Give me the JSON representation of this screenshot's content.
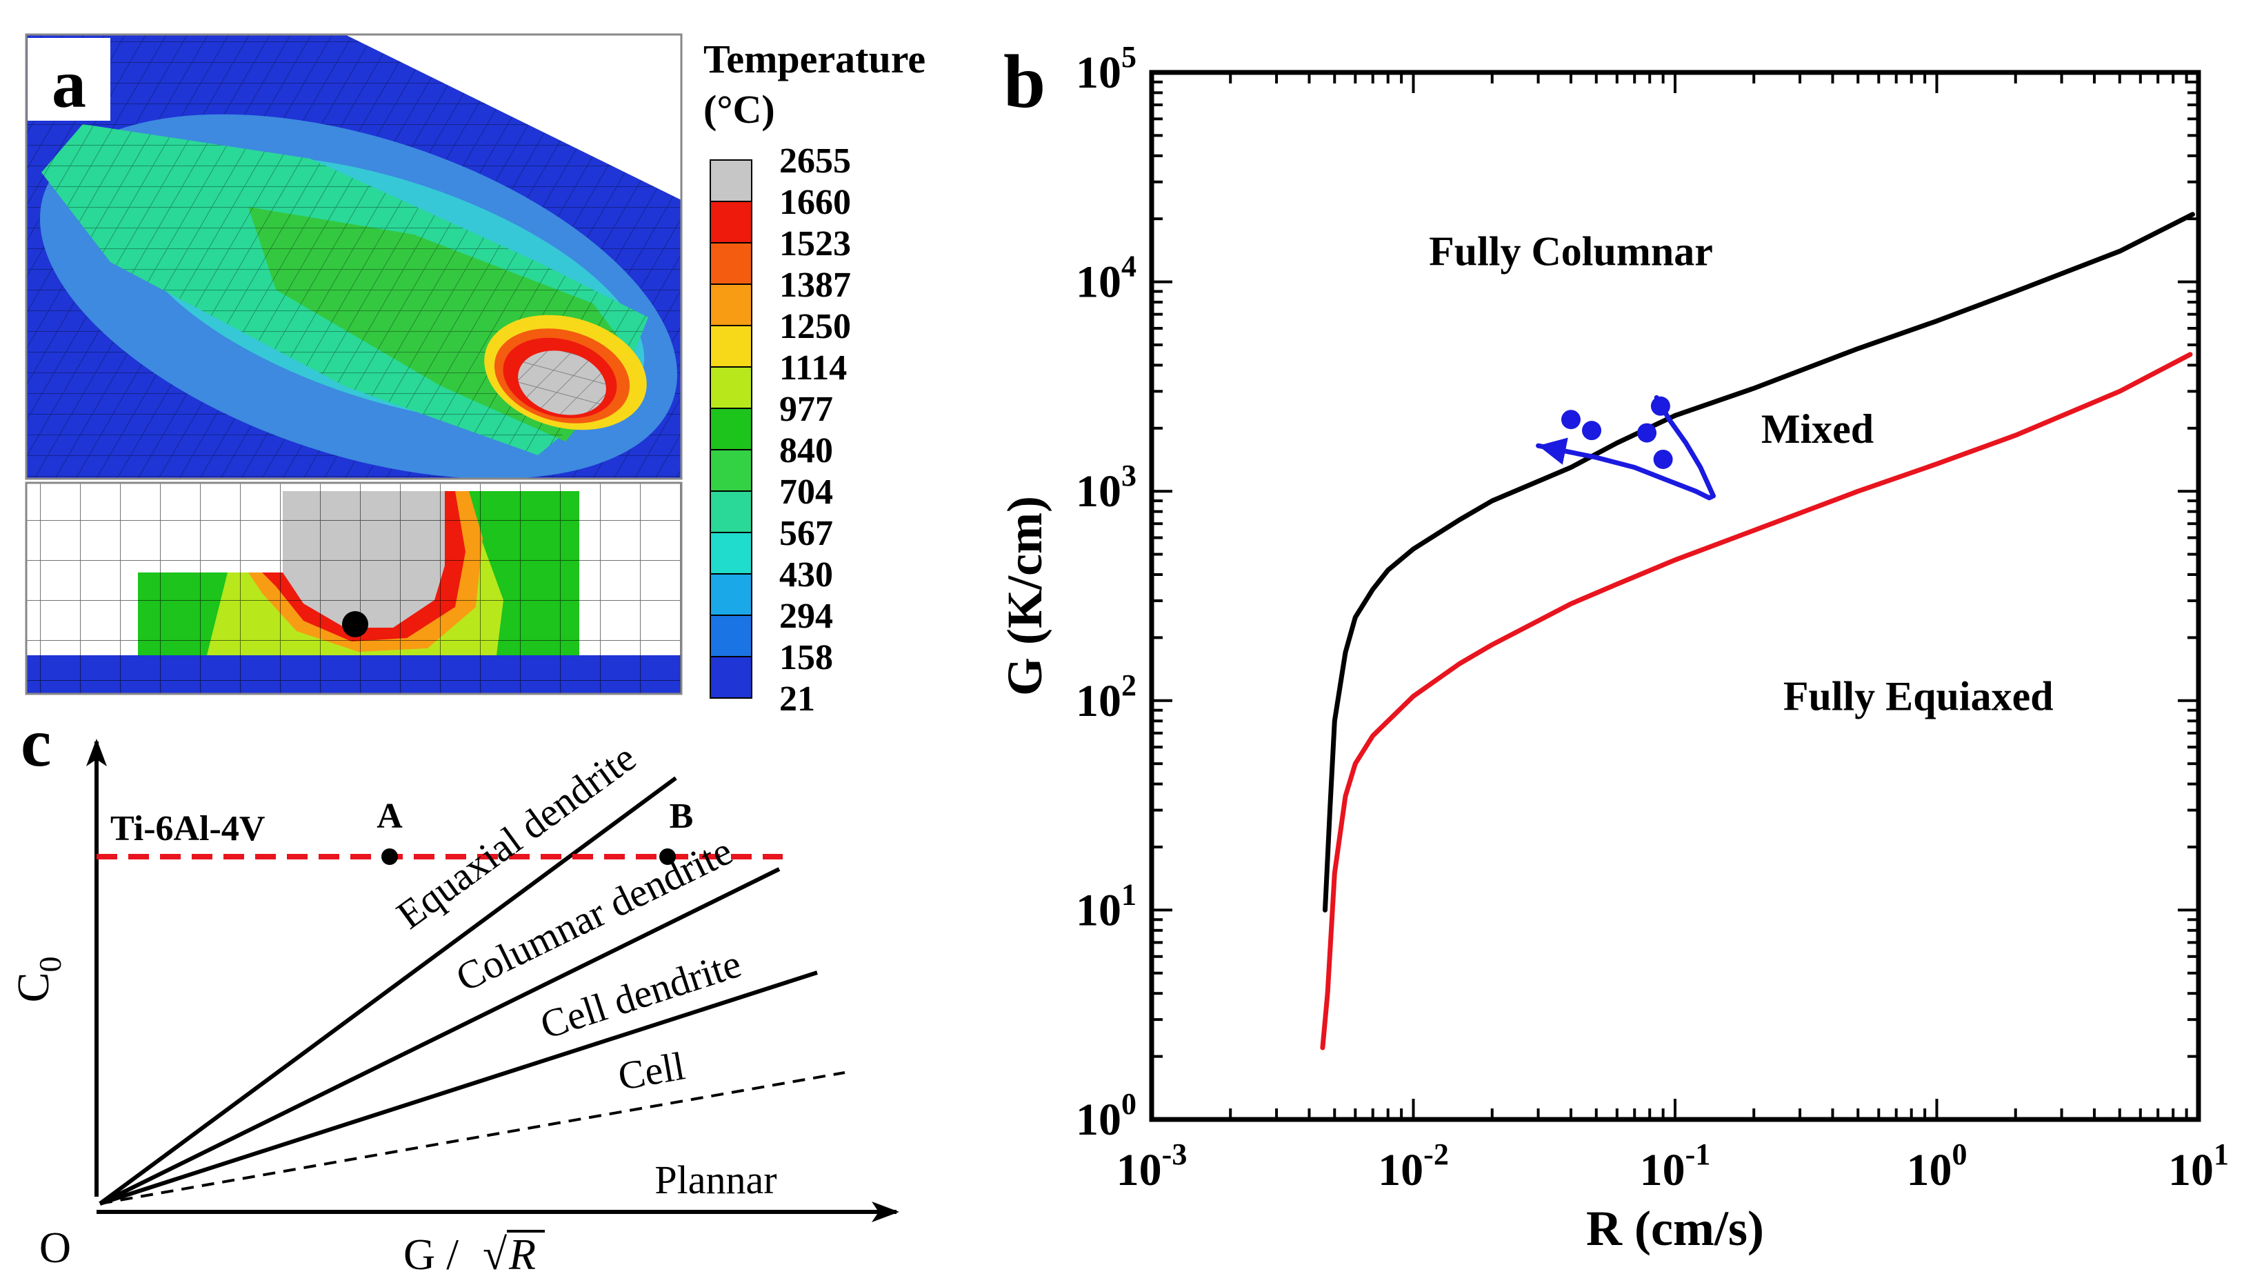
{
  "panels": {
    "a": {
      "label": "a",
      "legend_title_line1": "Temperature",
      "legend_title_line2": "(°C)",
      "legend_values": [
        "2655",
        "1660",
        "1523",
        "1387",
        "1250",
        "1114",
        "977",
        "840",
        "704",
        "567",
        "430",
        "294",
        "158",
        "21"
      ],
      "legend_colors": [
        "#c6c6c6",
        "#ee1a0c",
        "#f45c10",
        "#f89c14",
        "#f7d91a",
        "#b8e81c",
        "#1cc41c",
        "#33d245",
        "#2ad897",
        "#1fdccd",
        "#1aa8e8",
        "#1a74e4",
        "#1f35d6"
      ]
    },
    "b": {
      "label": "b"
    },
    "c": {
      "label": "c",
      "ylabel_main": "C",
      "ylabel_sub": "0",
      "xlabel_pre": "G / ",
      "xlabel_rad": "R",
      "origin_label": "O",
      "alloy_label": "Ti-6Al-4V",
      "point_a_label": "A",
      "point_b_label": "B",
      "regions": [
        "Equaxial dendrite",
        "Columnar dendrite",
        "Cell dendrite",
        "Cell",
        "Plannar"
      ]
    }
  },
  "chart_data": [
    {
      "panel": "b",
      "type": "line",
      "xscale": "log",
      "yscale": "log",
      "xlim": [
        0.001,
        10
      ],
      "ylim": [
        1,
        100000
      ],
      "xlabel": "R (cm/s)",
      "ylabel": "G (K/cm)",
      "xticks": [
        {
          "value": 0.001,
          "base": "10",
          "exp": "-3"
        },
        {
          "value": 0.01,
          "base": "10",
          "exp": "-2"
        },
        {
          "value": 0.1,
          "base": "10",
          "exp": "-1"
        },
        {
          "value": 1,
          "base": "10",
          "exp": "0"
        },
        {
          "value": 10,
          "base": "10",
          "exp": "1"
        }
      ],
      "yticks": [
        {
          "value": 1,
          "base": "10",
          "exp": "0"
        },
        {
          "value": 10,
          "base": "10",
          "exp": "1"
        },
        {
          "value": 100,
          "base": "10",
          "exp": "2"
        },
        {
          "value": 1000,
          "base": "10",
          "exp": "3"
        },
        {
          "value": 10000,
          "base": "10",
          "exp": "4"
        },
        {
          "value": 100000,
          "base": "10",
          "exp": "5"
        }
      ],
      "series": [
        {
          "name": "columnar-boundary",
          "color": "#000000",
          "x": [
            0.0046,
            0.0048,
            0.005,
            0.0055,
            0.006,
            0.007,
            0.008,
            0.01,
            0.015,
            0.02,
            0.04,
            0.06,
            0.1,
            0.2,
            0.5,
            1,
            2,
            5,
            9.5
          ],
          "y": [
            10,
            30,
            80,
            170,
            250,
            340,
            420,
            530,
            730,
            900,
            1300,
            1700,
            2300,
            3100,
            4800,
            6500,
            9000,
            14000,
            21000
          ]
        },
        {
          "name": "equiaxed-boundary",
          "color": "#e8141e",
          "x": [
            0.0045,
            0.0047,
            0.005,
            0.0055,
            0.006,
            0.007,
            0.008,
            0.01,
            0.015,
            0.02,
            0.04,
            0.06,
            0.1,
            0.2,
            0.5,
            1,
            2,
            5,
            9.3
          ],
          "y": [
            2.2,
            4,
            15,
            35,
            50,
            68,
            80,
            105,
            150,
            185,
            290,
            360,
            470,
            650,
            1000,
            1350,
            1850,
            3000,
            4500
          ]
        },
        {
          "name": "melt-pool-path",
          "color": "#1a1ae0",
          "x": [
            0.085,
            0.095,
            0.11,
            0.125,
            0.14,
            0.135,
            0.12,
            0.09,
            0.07,
            0.05,
            0.03
          ],
          "y": [
            2800,
            2200,
            1700,
            1300,
            950,
            930,
            1000,
            1150,
            1300,
            1450,
            1650
          ]
        }
      ],
      "points": [
        {
          "x": 0.04,
          "y": 2200
        },
        {
          "x": 0.048,
          "y": 1950
        },
        {
          "x": 0.078,
          "y": 1900
        },
        {
          "x": 0.088,
          "y": 2550
        },
        {
          "x": 0.09,
          "y": 1420
        }
      ],
      "annotations": [
        {
          "text": "Fully Columnar",
          "x": 0.04,
          "y": 12000
        },
        {
          "text": "Mixed",
          "x": 0.35,
          "y": 1700
        },
        {
          "text": "Fully Equiaxed",
          "x": 0.85,
          "y": 90
        }
      ]
    }
  ]
}
